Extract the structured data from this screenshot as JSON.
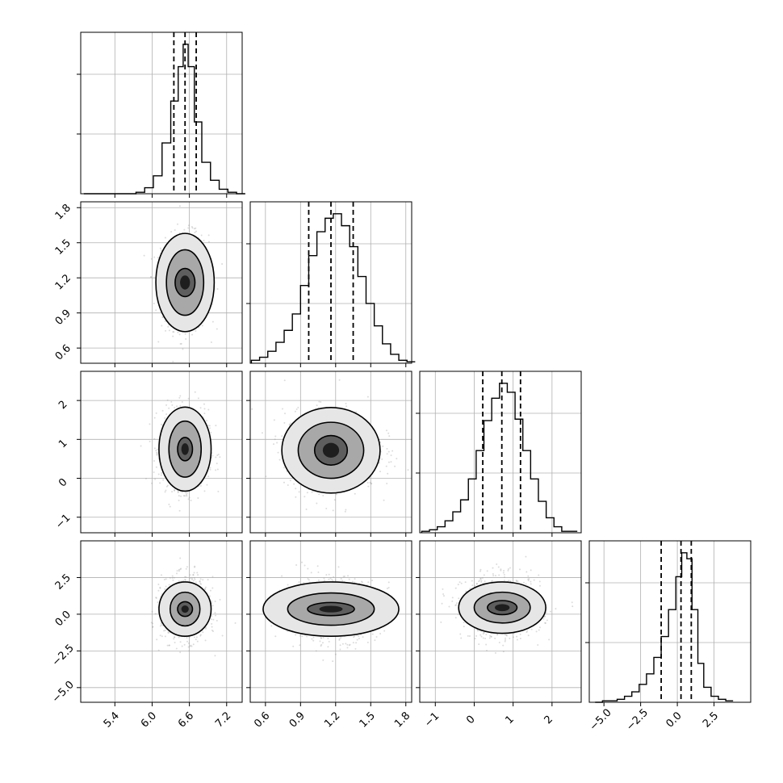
{
  "chart_data": {
    "type": "corner",
    "grid": true,
    "parameters": [
      {
        "label": "",
        "range": [
          4.85,
          7.45
        ],
        "ticks": [
          5.4,
          6.0,
          6.6,
          7.2
        ],
        "tick_labels": [
          "5.4",
          "6.0",
          "6.6",
          "7.2"
        ],
        "quantiles": [
          6.35,
          6.53,
          6.71
        ],
        "peak": 6.53,
        "sigma": 0.18
      },
      {
        "label": "",
        "range": [
          0.47,
          1.85
        ],
        "ticks": [
          0.6,
          0.9,
          1.2,
          1.5,
          1.8
        ],
        "tick_labels": [
          "0.6",
          "0.9",
          "1.2",
          "1.5",
          "1.8"
        ],
        "quantiles": [
          0.97,
          1.16,
          1.35
        ],
        "peak": 1.16,
        "sigma": 0.19
      },
      {
        "label": "",
        "range": [
          -1.4,
          2.75
        ],
        "ticks": [
          -1,
          0,
          1,
          2
        ],
        "tick_labels": [
          "−1",
          "0",
          "1",
          "2"
        ],
        "quantiles": [
          0.22,
          0.71,
          1.19
        ],
        "peak": 0.71,
        "sigma": 0.48
      },
      {
        "label": "",
        "range": [
          -6.0,
          5.0
        ],
        "ticks": [
          -5.0,
          -2.5,
          0.0,
          2.5
        ],
        "tick_labels": [
          "−5.0",
          "−2.5",
          "0.0",
          "2.5"
        ],
        "quantiles": [
          -1.1,
          0.25,
          0.95
        ],
        "peak": 0.3,
        "sigma": 1.0
      }
    ],
    "histograms": [
      {
        "param": 0,
        "bins": [
          4.9,
          5.04,
          5.18,
          5.32,
          5.46,
          5.6,
          5.74,
          5.88,
          6.02,
          6.16,
          6.3,
          6.42,
          6.5,
          6.58,
          6.68,
          6.8,
          6.94,
          7.08,
          7.22,
          7.36
        ],
        "values": [
          0,
          0,
          0,
          0,
          0,
          0,
          0.01,
          0.04,
          0.12,
          0.34,
          0.62,
          0.85,
          1.0,
          0.85,
          0.48,
          0.21,
          0.09,
          0.03,
          0.01,
          0
        ]
      },
      {
        "param": 1,
        "bins": [
          0.48,
          0.55,
          0.62,
          0.69,
          0.76,
          0.83,
          0.9,
          0.97,
          1.04,
          1.11,
          1.18,
          1.25,
          1.32,
          1.39,
          1.46,
          1.53,
          1.6,
          1.67,
          1.74,
          1.81
        ],
        "values": [
          0.02,
          0.04,
          0.08,
          0.14,
          0.22,
          0.33,
          0.52,
          0.72,
          0.88,
          0.97,
          1.0,
          0.92,
          0.78,
          0.58,
          0.4,
          0.25,
          0.13,
          0.06,
          0.02,
          0.01
        ]
      },
      {
        "param": 2,
        "bins": [
          -1.35,
          -1.15,
          -0.95,
          -0.75,
          -0.55,
          -0.35,
          -0.15,
          0.05,
          0.25,
          0.45,
          0.65,
          0.85,
          1.05,
          1.25,
          1.45,
          1.65,
          1.85,
          2.05,
          2.25,
          2.45
        ],
        "values": [
          0.01,
          0.02,
          0.04,
          0.08,
          0.14,
          0.22,
          0.36,
          0.55,
          0.75,
          0.9,
          1.0,
          0.94,
          0.76,
          0.55,
          0.36,
          0.21,
          0.1,
          0.04,
          0.01,
          0.01
        ]
      },
      {
        "param": 3,
        "bins": [
          -5.6,
          -5.1,
          -4.6,
          -4.1,
          -3.6,
          -3.1,
          -2.6,
          -2.1,
          -1.6,
          -1.1,
          -0.6,
          -0.1,
          0.3,
          0.65,
          1.0,
          1.4,
          1.8,
          2.3,
          2.8,
          3.3
        ],
        "values": [
          0.0,
          0.01,
          0.01,
          0.02,
          0.04,
          0.07,
          0.12,
          0.19,
          0.3,
          0.44,
          0.62,
          0.84,
          1.0,
          0.96,
          0.62,
          0.26,
          0.1,
          0.04,
          0.02,
          0.01
        ]
      }
    ],
    "pairs": [
      {
        "x": 0,
        "y": 1,
        "center": [
          6.53,
          1.16
        ],
        "sigma": [
          0.18,
          0.19
        ],
        "contour_widths": [
          [
            0.16,
            0.12
          ],
          [
            0.3,
            0.28
          ],
          [
            0.47,
            0.42
          ]
        ]
      },
      {
        "x": 0,
        "y": 2,
        "center": [
          6.53,
          0.75
        ],
        "sigma": [
          0.18,
          0.48
        ],
        "contour_widths": [
          [
            0.12,
            0.3
          ],
          [
            0.26,
            0.72
          ],
          [
            0.42,
            1.08
          ]
        ]
      },
      {
        "x": 1,
        "y": 2,
        "center": [
          1.16,
          0.72
        ],
        "sigma": [
          0.19,
          0.48
        ],
        "contour_widths": [
          [
            0.14,
            0.38
          ],
          [
            0.28,
            0.72
          ],
          [
            0.42,
            1.1
          ]
        ]
      },
      {
        "x": 0,
        "y": 3,
        "center": [
          6.53,
          0.35
        ],
        "sigma": [
          0.18,
          1.0
        ],
        "contour_widths": [
          [
            0.12,
            0.5
          ],
          [
            0.24,
            1.15
          ],
          [
            0.42,
            1.85
          ]
        ]
      },
      {
        "x": 1,
        "y": 3,
        "center": [
          1.16,
          0.35
        ],
        "sigma": [
          0.19,
          1.0
        ],
        "contour_widths": [
          [
            0.2,
            0.45
          ],
          [
            0.37,
            1.1
          ],
          [
            0.58,
            1.85
          ]
        ]
      },
      {
        "x": 2,
        "y": 3,
        "center": [
          0.72,
          0.45
        ],
        "sigma": [
          0.48,
          1.0
        ],
        "contour_widths": [
          [
            0.38,
            0.48
          ],
          [
            0.72,
            1.05
          ],
          [
            1.12,
            1.75
          ]
        ]
      }
    ]
  }
}
